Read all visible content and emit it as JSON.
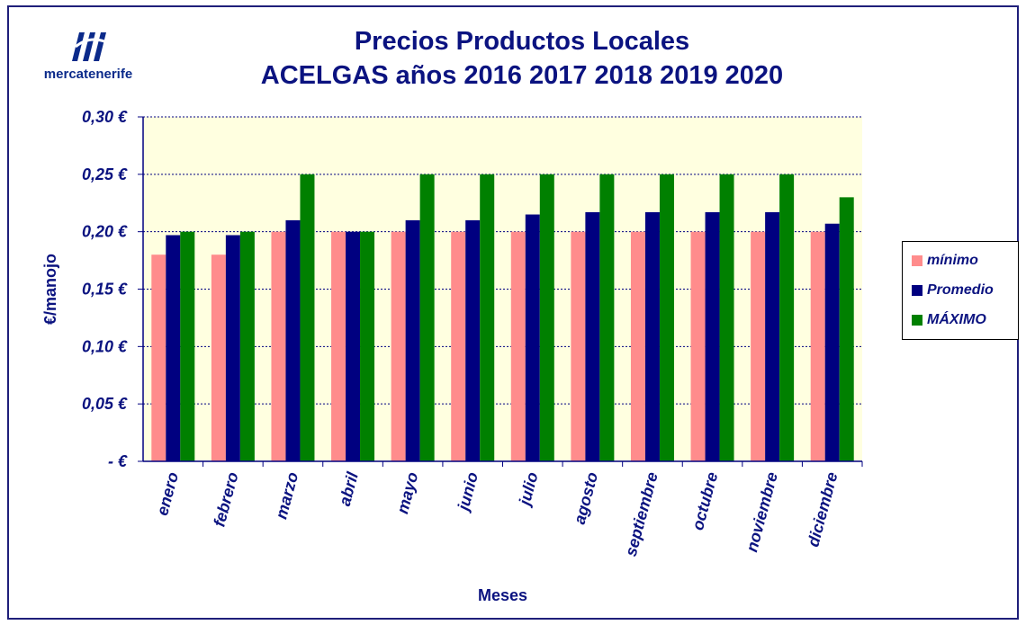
{
  "logo": {
    "text": "mercatenerife"
  },
  "chart_data": {
    "type": "bar",
    "title": [
      "Precios Productos Locales",
      "ACELGAS años  2016 2017 2018 2019 2020"
    ],
    "xlabel": "Meses",
    "ylabel": "€/manojo",
    "ylim": [
      0,
      0.3
    ],
    "yticks": [
      0,
      0.05,
      0.1,
      0.15,
      0.2,
      0.25,
      0.3
    ],
    "ytick_labels": [
      "-   €",
      "0,05 €",
      "0,10 €",
      "0,15 €",
      "0,20 €",
      "0,25 €",
      "0,30 €"
    ],
    "categories": [
      "enero",
      "febrero",
      "marzo",
      "abril",
      "mayo",
      "junio",
      "julio",
      "agosto",
      "septiembre",
      "octubre",
      "noviembre",
      "diciembre"
    ],
    "series": [
      {
        "name": "mínimo",
        "color": "#ff8c8c",
        "values": [
          0.18,
          0.18,
          0.2,
          0.2,
          0.2,
          0.2,
          0.2,
          0.2,
          0.2,
          0.2,
          0.2,
          0.2
        ]
      },
      {
        "name": "Promedio",
        "color": "#000080",
        "values": [
          0.197,
          0.197,
          0.21,
          0.2,
          0.21,
          0.21,
          0.215,
          0.217,
          0.217,
          0.217,
          0.217,
          0.207
        ]
      },
      {
        "name": "MÁXIMO",
        "color": "#008000",
        "values": [
          0.2,
          0.2,
          0.25,
          0.2,
          0.25,
          0.25,
          0.25,
          0.25,
          0.25,
          0.25,
          0.25,
          0.23
        ]
      }
    ],
    "grid": true,
    "legend_position": "right",
    "plot_background": "#ffffe0"
  }
}
